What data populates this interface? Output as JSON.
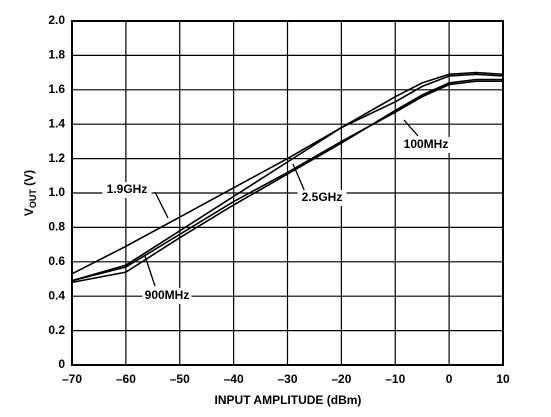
{
  "chart_data": {
    "type": "line",
    "x_label": "INPUT AMPLITUDE (dBm)",
    "y_label": {
      "main": "V",
      "sub": "OUT",
      "unit": " (V)"
    },
    "x": [
      -70,
      -60,
      -50,
      -40,
      -30,
      -20,
      -10,
      -5,
      0,
      5,
      10
    ],
    "series": [
      {
        "name": "1.9GHz",
        "color": "#000000",
        "values": [
          0.53,
          0.69,
          0.86,
          1.03,
          1.2,
          1.38,
          1.56,
          1.64,
          1.69,
          1.7,
          1.69
        ]
      },
      {
        "name": "2.5GHz",
        "color": "#000000",
        "values": [
          0.49,
          0.58,
          0.78,
          0.98,
          1.18,
          1.38,
          1.53,
          1.62,
          1.68,
          1.69,
          1.68
        ]
      },
      {
        "name": "100MHz",
        "color": "#000000",
        "values": [
          0.49,
          0.57,
          0.76,
          0.95,
          1.12,
          1.3,
          1.47,
          1.56,
          1.63,
          1.65,
          1.65
        ]
      },
      {
        "name": "900MHz",
        "color": "#000000",
        "values": [
          0.48,
          0.54,
          0.74,
          0.93,
          1.11,
          1.29,
          1.48,
          1.57,
          1.64,
          1.66,
          1.66
        ]
      }
    ],
    "xlim": [
      -70,
      10
    ],
    "xticks": [
      {
        "value": -70,
        "label": "–70"
      },
      {
        "value": -60,
        "label": "–60"
      },
      {
        "value": -50,
        "label": "–50"
      },
      {
        "value": -40,
        "label": "–40"
      },
      {
        "value": -30,
        "label": "–30"
      },
      {
        "value": -20,
        "label": "–20"
      },
      {
        "value": -10,
        "label": "–10"
      },
      0,
      10
    ],
    "ylim": [
      0,
      2
    ],
    "yticks": [
      0,
      0.2,
      0.4,
      0.6,
      0.8,
      {
        "value": 1,
        "label": "1.0"
      },
      1.2,
      1.4,
      1.6,
      1.8,
      {
        "value": 2,
        "label": "2.0"
      }
    ],
    "grid": true
  }
}
